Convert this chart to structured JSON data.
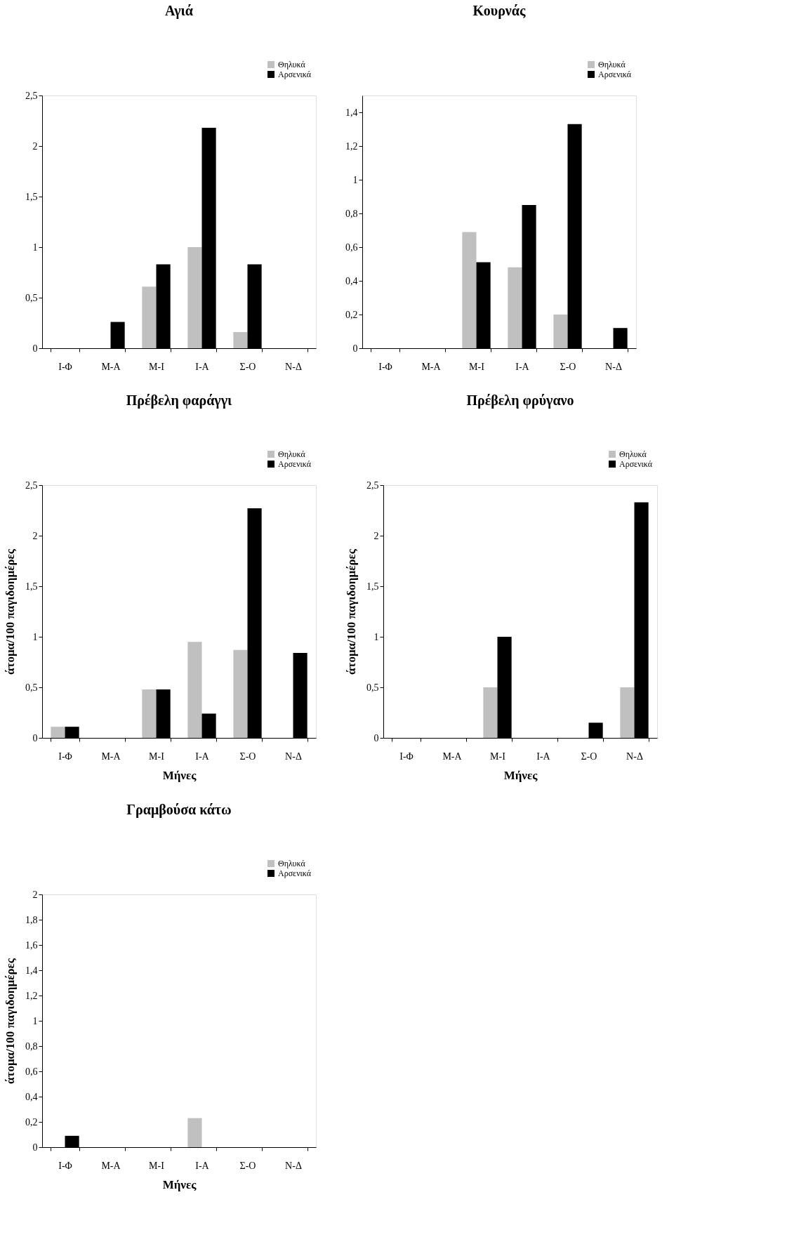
{
  "chart_data": [
    {
      "type": "bar",
      "title": "Αγιά",
      "categories": [
        "Ι-Φ",
        "Μ-Α",
        "Μ-Ι",
        "Ι-Α",
        "Σ-Ο",
        "Ν-Δ"
      ],
      "legend": "top right",
      "grid": false,
      "ylim": [
        0,
        2.5
      ],
      "yticks": [
        0,
        {
          "value": 0.5,
          "label": "0,5"
        },
        1,
        {
          "value": 1.5,
          "label": "1,5"
        },
        2,
        {
          "value": 2.5,
          "label": "2,5"
        }
      ],
      "series": [
        {
          "name": "Θηλυκά",
          "color": "#c0c0c0",
          "values": [
            0,
            0,
            0.61,
            1.0,
            0.16,
            0
          ]
        },
        {
          "name": "Αρσενικά",
          "color": "#000000",
          "values": [
            0,
            0.26,
            0.83,
            2.18,
            0.83,
            0
          ]
        }
      ]
    },
    {
      "type": "bar",
      "title": "Κουρνάς",
      "categories": [
        "Ι-Φ",
        "Μ-Α",
        "Μ-Ι",
        "Ι-Α",
        "Σ-Ο",
        "Ν-Δ"
      ],
      "legend": "top right",
      "grid": false,
      "ylim": [
        0,
        1.5
      ],
      "yticks": [
        0,
        {
          "value": 0.2,
          "label": "0,2"
        },
        {
          "value": 0.4,
          "label": "0,4"
        },
        {
          "value": 0.6,
          "label": "0,6"
        },
        {
          "value": 0.8,
          "label": "0,8"
        },
        1,
        {
          "value": 1.2,
          "label": "1,2"
        },
        {
          "value": 1.4,
          "label": "1,4"
        }
      ],
      "series": [
        {
          "name": "Θηλυκά",
          "color": "#c0c0c0",
          "values": [
            0,
            0,
            0.69,
            0.48,
            0.2,
            0
          ]
        },
        {
          "name": "Αρσενικά",
          "color": "#000000",
          "values": [
            0,
            0,
            0.51,
            0.85,
            1.33,
            0.12
          ]
        }
      ]
    },
    {
      "type": "bar",
      "title": "Πρέβελη φαράγγι",
      "xlabel": "Μήνες",
      "ylabel": "άτομα/100 παγιδοημέρες",
      "categories": [
        "Ι-Φ",
        "Μ-Α",
        "Μ-Ι",
        "Ι-Α",
        "Σ-Ο",
        "Ν-Δ"
      ],
      "legend": "top right",
      "grid": false,
      "ylim": [
        0,
        2.5
      ],
      "yticks": [
        0,
        {
          "value": 0.5,
          "label": "0,5"
        },
        1,
        {
          "value": 1.5,
          "label": "1,5"
        },
        2,
        {
          "value": 2.5,
          "label": "2,5"
        }
      ],
      "series": [
        {
          "name": "Θηλυκά",
          "color": "#c0c0c0",
          "values": [
            0.11,
            0,
            0.48,
            0.95,
            0.87,
            0
          ]
        },
        {
          "name": "Αρσενικά",
          "color": "#000000",
          "values": [
            0.11,
            0,
            0.48,
            0.24,
            2.27,
            0.84
          ]
        }
      ]
    },
    {
      "type": "bar",
      "title": "Πρέβελη φρύγανο",
      "xlabel": "Μήνες",
      "ylabel": "άτομα/100 παγιδοημέρες",
      "categories": [
        "Ι-Φ",
        "Μ-Α",
        "Μ-Ι",
        "Ι-Α",
        "Σ-Ο",
        "Ν-Δ"
      ],
      "legend": "top right",
      "grid": false,
      "ylim": [
        0,
        2.5
      ],
      "yticks": [
        0,
        {
          "value": 0.5,
          "label": "0,5"
        },
        1,
        {
          "value": 1.5,
          "label": "1,5"
        },
        2,
        {
          "value": 2.5,
          "label": "2,5"
        }
      ],
      "series": [
        {
          "name": "Θηλυκά",
          "color": "#c0c0c0",
          "values": [
            0,
            0,
            0.5,
            0,
            0,
            0.5
          ]
        },
        {
          "name": "Αρσενικά",
          "color": "#000000",
          "values": [
            0,
            0,
            1.0,
            0,
            0.15,
            2.33
          ]
        }
      ]
    },
    {
      "type": "bar",
      "title": "Γραμβούσα κάτω",
      "xlabel": "Μήνες",
      "ylabel": "άτομα/100 παγιδοημέρες",
      "categories": [
        "Ι-Φ",
        "Μ-Α",
        "Μ-Ι",
        "Ι-Α",
        "Σ-Ο",
        "Ν-Δ"
      ],
      "legend": "top right",
      "grid": false,
      "ylim": [
        0,
        2
      ],
      "yticks": [
        0,
        {
          "value": 0.2,
          "label": "0,2"
        },
        {
          "value": 0.4,
          "label": "0,4"
        },
        {
          "value": 0.6,
          "label": "0,6"
        },
        {
          "value": 0.8,
          "label": "0,8"
        },
        1,
        {
          "value": 1.2,
          "label": "1,2"
        },
        {
          "value": 1.4,
          "label": "1,4"
        },
        {
          "value": 1.6,
          "label": "1,6"
        },
        {
          "value": 1.8,
          "label": "1,8"
        },
        2
      ],
      "series": [
        {
          "name": "Θηλυκά",
          "color": "#c0c0c0",
          "values": [
            0,
            0,
            0,
            0.23,
            0,
            0
          ]
        },
        {
          "name": "Αρσενικά",
          "color": "#000000",
          "values": [
            0.09,
            0,
            0,
            0,
            0,
            0
          ]
        }
      ]
    }
  ]
}
